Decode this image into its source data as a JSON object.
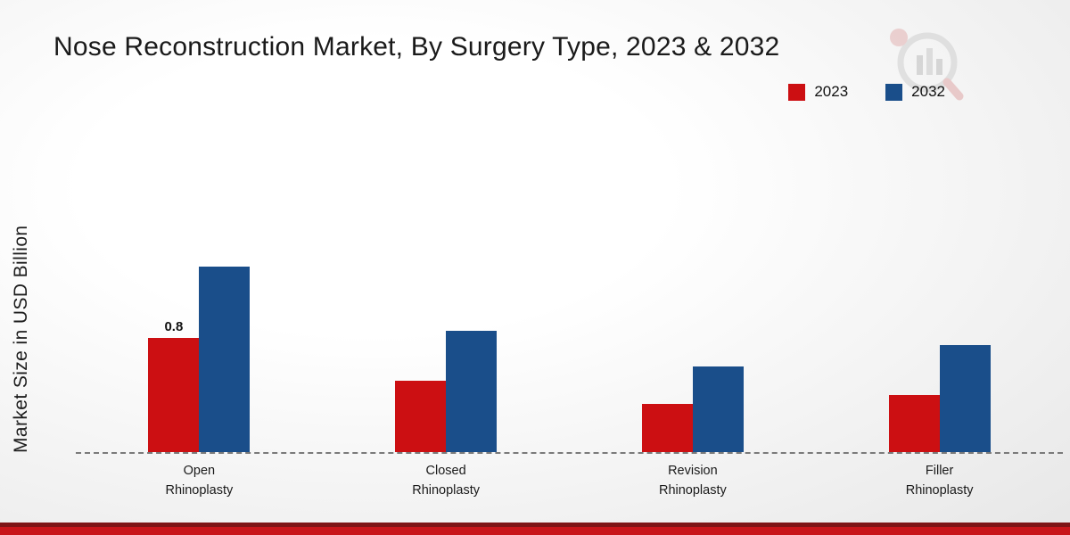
{
  "title": "Nose Reconstruction Market, By Surgery Type, 2023 & 2032",
  "y_axis_label": "Market Size in USD Billion",
  "chart_data": {
    "type": "bar",
    "title": "Nose Reconstruction Market, By Surgery Type, 2023 & 2032",
    "categories": [
      "Open\nRhinoplasty",
      "Closed\nRhinoplasty",
      "Revision\nRhinoplasty",
      "Filler\nRhinoplasty"
    ],
    "series": [
      {
        "name": "2023",
        "color": "#cc0f12",
        "values": [
          0.8,
          0.5,
          0.34,
          0.4
        ]
      },
      {
        "name": "2032",
        "color": "#1a4e8a",
        "values": [
          1.3,
          0.85,
          0.6,
          0.75
        ]
      }
    ],
    "data_labels": [
      {
        "series": "2023",
        "category_index": 0,
        "text": "0.8"
      }
    ],
    "xlabel": "",
    "ylabel": "Market Size in USD Billion",
    "ylim": [
      0,
      1.4
    ],
    "grid": false,
    "legend_position": "top-right",
    "baseline_style": "dashed"
  },
  "footer": {
    "stripe_colors": [
      "#7e1416",
      "#c8151a"
    ]
  }
}
